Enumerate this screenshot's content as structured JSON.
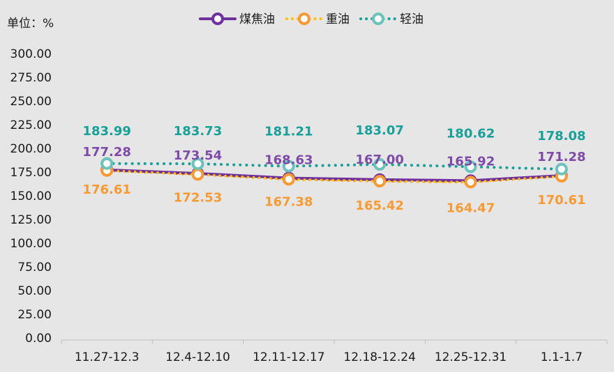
{
  "chart_data": {
    "type": "line",
    "unit_label": "单位：%",
    "categories": [
      "11.27-12.3",
      "12.4-12.10",
      "12.11-12.17",
      "12.18-12.24",
      "12.25-12.31",
      "1.1-1.7"
    ],
    "ylim": [
      0,
      300
    ],
    "yticks": [
      "0.00",
      "25.00",
      "50.00",
      "75.00",
      "100.00",
      "125.00",
      "150.00",
      "175.00",
      "200.00",
      "225.00",
      "250.00",
      "275.00",
      "300.00"
    ],
    "grid": false,
    "legend_position": "top",
    "series": [
      {
        "name": "煤焦油",
        "color": "#7030a0",
        "style": "solid",
        "values": [
          177.28,
          173.54,
          168.63,
          167.0,
          165.92,
          171.28
        ],
        "labels": [
          "177.28",
          "173.54",
          "168.63",
          "167.00",
          "165.92",
          "171.28"
        ]
      },
      {
        "name": "重油",
        "color": "#f79a32",
        "style": "dotted",
        "values": [
          176.61,
          172.53,
          167.38,
          165.42,
          164.47,
          170.61
        ],
        "labels": [
          "176.61",
          "172.53",
          "167.38",
          "165.42",
          "164.47",
          "170.61"
        ]
      },
      {
        "name": "轻油",
        "color": "#17a097",
        "style": "dotted",
        "values": [
          183.99,
          183.73,
          181.21,
          183.07,
          180.62,
          178.08
        ],
        "labels": [
          "183.99",
          "183.73",
          "181.21",
          "183.07",
          "180.62",
          "178.08"
        ]
      }
    ]
  }
}
